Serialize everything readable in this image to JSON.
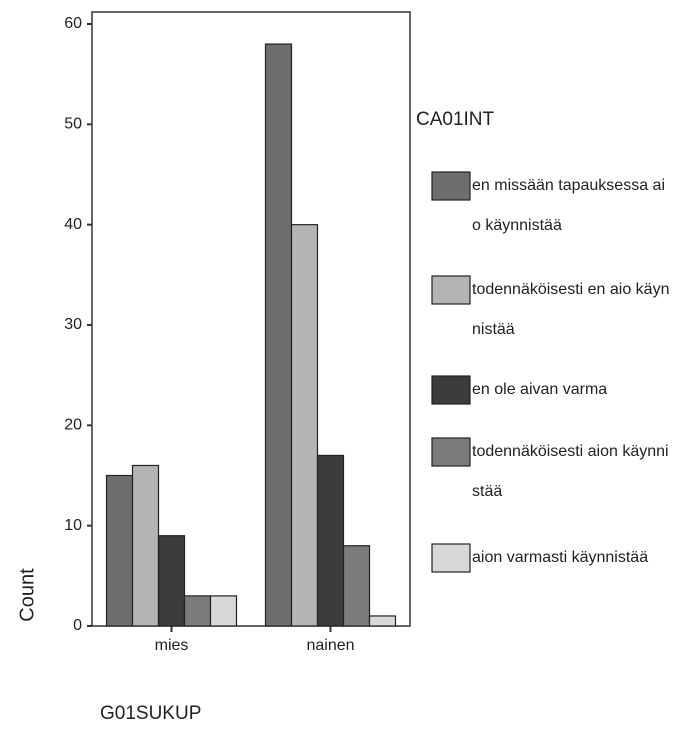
{
  "chart_data": {
    "type": "bar",
    "y_label": "Count",
    "x_label": "G01SUKUP",
    "legend_title": "CA01INT",
    "categories": [
      "mies",
      "nainen"
    ],
    "series": [
      {
        "name": "en missään tapauksessa aio käynnistää",
        "color": "#6e6e6e",
        "values": [
          15,
          58
        ]
      },
      {
        "name": "todennäköisesti en aio käynnistää",
        "color": "#b4b4b4",
        "values": [
          16,
          40
        ]
      },
      {
        "name": "en ole aivan varma",
        "color": "#3c3c3c",
        "values": [
          9,
          17
        ]
      },
      {
        "name": "todennäköisesti aion käynnistää",
        "color": "#7c7c7c",
        "values": [
          3,
          8
        ]
      },
      {
        "name": "aion varmasti käynnistää",
        "color": "#d8d8d8",
        "values": [
          3,
          1
        ]
      }
    ],
    "ylim": [
      0,
      60
    ],
    "yticks": [
      0,
      10,
      20,
      30,
      40,
      50,
      60
    ],
    "legend": "right"
  }
}
